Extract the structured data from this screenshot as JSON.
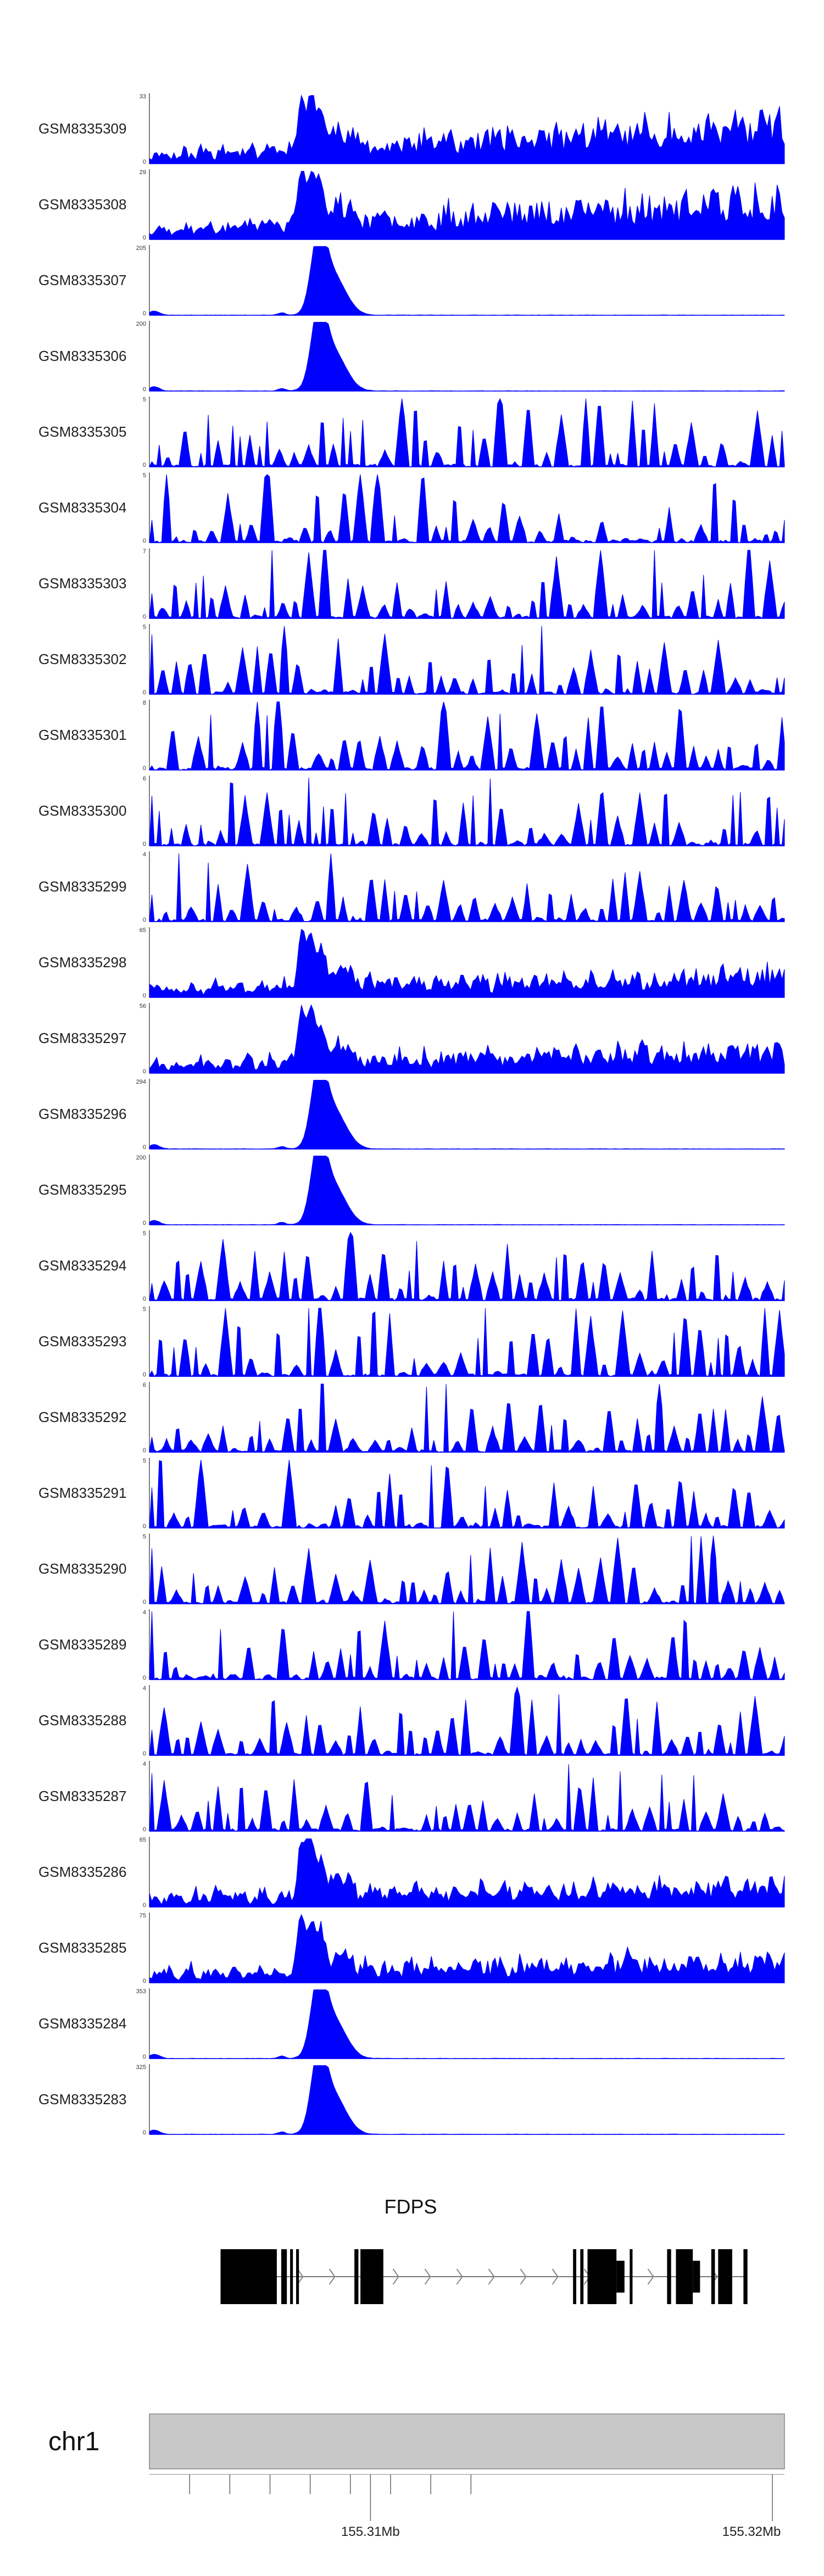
{
  "colors": {
    "signal": "#0000ff",
    "gene": "#000000",
    "ideogram_fill": "#c8c8c8",
    "ideogram_stroke": "#888888",
    "axis": "#555555"
  },
  "chart_data": {
    "type": "area",
    "genomic_range_mb": [
      155.3045,
      155.3203
    ],
    "tracks": [
      {
        "name": "GSM8335309",
        "ymax_label": "33",
        "ymin_label": "0",
        "profile": "broad",
        "seed": 11
      },
      {
        "name": "GSM8335308",
        "ymax_label": "29",
        "ymin_label": "0",
        "profile": "broad2",
        "seed": 23
      },
      {
        "name": "GSM8335307",
        "ymax_label": "205",
        "ymin_label": "0",
        "profile": "peak",
        "seed": 37
      },
      {
        "name": "GSM8335306",
        "ymax_label": "200",
        "ymin_label": "0",
        "profile": "peak",
        "seed": 41
      },
      {
        "name": "GSM8335305",
        "ymax_label": "5",
        "ymin_label": "0",
        "profile": "noise",
        "seed": 53
      },
      {
        "name": "GSM8335304",
        "ymax_label": "5",
        "ymin_label": "0",
        "profile": "noise",
        "seed": 67
      },
      {
        "name": "GSM8335303",
        "ymax_label": "7",
        "ymin_label": "0",
        "profile": "noise",
        "seed": 71
      },
      {
        "name": "GSM8335302",
        "ymax_label": "5",
        "ymin_label": "0",
        "profile": "noise",
        "seed": 83
      },
      {
        "name": "GSM8335301",
        "ymax_label": "8",
        "ymin_label": "0",
        "profile": "noise",
        "seed": 97
      },
      {
        "name": "GSM8335300",
        "ymax_label": "6",
        "ymin_label": "0",
        "profile": "noise",
        "seed": 101
      },
      {
        "name": "GSM8335299",
        "ymax_label": "4",
        "ymin_label": "0",
        "profile": "noise",
        "seed": 113
      },
      {
        "name": "GSM8335298",
        "ymax_label": "65",
        "ymin_label": "0",
        "profile": "broad3",
        "seed": 127
      },
      {
        "name": "GSM8335297",
        "ymax_label": "56",
        "ymin_label": "0",
        "profile": "broad3",
        "seed": 131
      },
      {
        "name": "GSM8335296",
        "ymax_label": "294",
        "ymin_label": "0",
        "profile": "peak",
        "seed": 139
      },
      {
        "name": "GSM8335295",
        "ymax_label": "200",
        "ymin_label": "0",
        "profile": "peak",
        "seed": 149
      },
      {
        "name": "GSM8335294",
        "ymax_label": "5",
        "ymin_label": "0",
        "profile": "noise",
        "seed": 151
      },
      {
        "name": "GSM8335293",
        "ymax_label": "5",
        "ymin_label": "0",
        "profile": "noise",
        "seed": 163
      },
      {
        "name": "GSM8335292",
        "ymax_label": "6",
        "ymin_label": "0",
        "profile": "noise",
        "seed": 173
      },
      {
        "name": "GSM8335291",
        "ymax_label": "5",
        "ymin_label": "0",
        "profile": "noise",
        "seed": 181
      },
      {
        "name": "GSM8335290",
        "ymax_label": "5",
        "ymin_label": "0",
        "profile": "noise",
        "seed": 191
      },
      {
        "name": "GSM8335289",
        "ymax_label": "4",
        "ymin_label": "0",
        "profile": "noise",
        "seed": 197
      },
      {
        "name": "GSM8335288",
        "ymax_label": "4",
        "ymin_label": "0",
        "profile": "noise",
        "seed": 211
      },
      {
        "name": "GSM8335287",
        "ymax_label": "4",
        "ymin_label": "0",
        "profile": "noise",
        "seed": 223
      },
      {
        "name": "GSM8335286",
        "ymax_label": "65",
        "ymin_label": "0",
        "profile": "broad3",
        "seed": 227
      },
      {
        "name": "GSM8335285",
        "ymax_label": "75",
        "ymin_label": "0",
        "profile": "broad3",
        "seed": 229
      },
      {
        "name": "GSM8335284",
        "ymax_label": "353",
        "ymin_label": "0",
        "profile": "peak",
        "seed": 233
      },
      {
        "name": "GSM8335283",
        "ymax_label": "325",
        "ymin_label": "0",
        "profile": "peak",
        "seed": 239
      }
    ],
    "gene": {
      "name": "FDPS",
      "strand": "+",
      "exons_mb": [
        [
          155.30627,
          155.30767
        ],
        [
          155.30778,
          155.30792
        ],
        [
          155.308,
          155.30807
        ],
        [
          155.30815,
          155.30822
        ],
        [
          155.3096,
          155.3097
        ],
        [
          155.30975,
          155.31032
        ],
        [
          155.31504,
          155.31512
        ],
        [
          155.31522,
          155.3153
        ],
        [
          155.3154,
          155.31612
        ],
        [
          155.31645,
          155.31652
        ],
        [
          155.31738,
          155.31748
        ],
        [
          155.3176,
          155.31802
        ],
        [
          155.31848,
          155.31857
        ],
        [
          155.31865,
          155.319
        ],
        [
          155.31928,
          155.31938
        ]
      ],
      "thin_exons_mb": [
        [
          155.31612,
          155.31632
        ],
        [
          155.31802,
          155.3182
        ]
      ]
    },
    "ideogram": {
      "chromosome": "chr1",
      "ticks_mb": [
        155.3055,
        155.3065,
        155.3075,
        155.3085,
        155.3095,
        155.3105,
        155.3115,
        155.3125
      ],
      "labeled_ticks": [
        {
          "mb": 155.31,
          "label": "155.31Mb"
        },
        {
          "mb": 155.32,
          "label": "155.32Mb"
        }
      ]
    }
  }
}
